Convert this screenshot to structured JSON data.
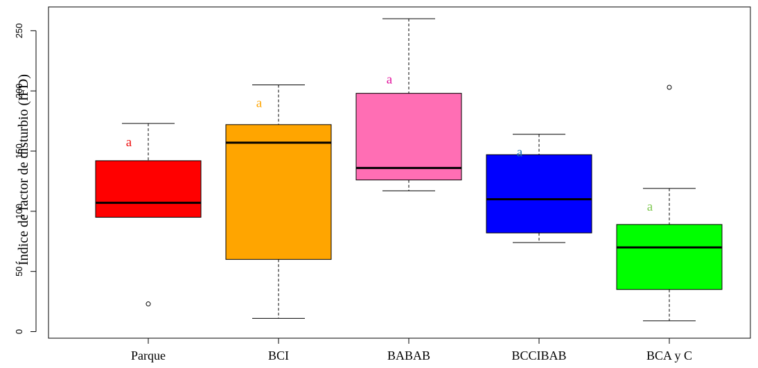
{
  "chart_data": {
    "type": "boxplot",
    "ylabel": "Índice de factor de disturbio (IFD)",
    "xlabel": "",
    "ylim": [
      0,
      260
    ],
    "yticks": [
      0,
      50,
      100,
      150,
      200,
      250
    ],
    "grid": false,
    "categories": [
      "Parque",
      "BCI",
      "BABAB",
      "BCCIBAB",
      "BCA y C"
    ],
    "boxes": [
      {
        "category": "Parque",
        "whisker_low": 95,
        "q1": 95,
        "median": 107,
        "q3": 142,
        "whisker_high": 173,
        "outliers": [
          23
        ],
        "color": "#ff0000",
        "letter": "a",
        "letter_color": "#ee1111"
      },
      {
        "category": "BCI",
        "whisker_low": 11,
        "q1": 60,
        "median": 157,
        "q3": 172,
        "whisker_high": 205,
        "outliers": [],
        "color": "#ffa500",
        "letter": "a",
        "letter_color": "#ffa500"
      },
      {
        "category": "BABAB",
        "whisker_low": 117,
        "q1": 126,
        "median": 136,
        "q3": 198,
        "whisker_high": 260,
        "outliers": [],
        "color": "#ff6eb4",
        "letter": "a",
        "letter_color": "#e2139d"
      },
      {
        "category": "BCCIBAB",
        "whisker_low": 74,
        "q1": 82,
        "median": 110,
        "q3": 147,
        "whisker_high": 164,
        "outliers": [],
        "color": "#0000ff",
        "letter": "a",
        "letter_color": "#1a6fb5"
      },
      {
        "category": "BCA y C",
        "whisker_low": 9,
        "q1": 35,
        "median": 70,
        "q3": 89,
        "whisker_high": 119,
        "outliers": [
          203
        ],
        "color": "#00ff00",
        "letter": "a",
        "letter_color": "#7ec850"
      }
    ]
  }
}
